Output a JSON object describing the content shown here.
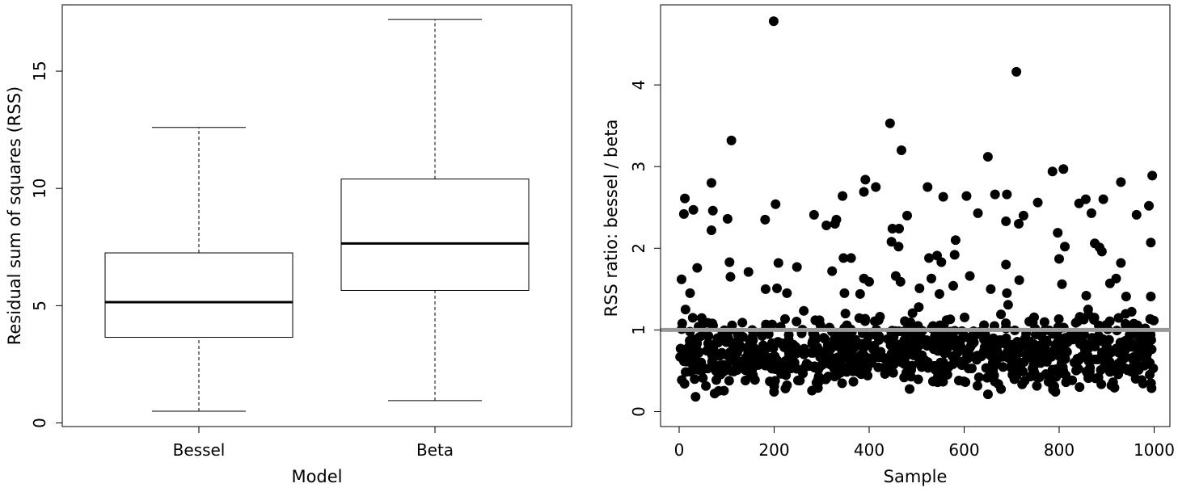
{
  "chart_data": [
    {
      "type": "boxplot",
      "xlabel": "Model",
      "ylabel": "Residual sum of squares (RSS)",
      "ylim": [
        0,
        17.2
      ],
      "yticks": [
        0,
        5,
        10,
        15
      ],
      "ytick_labels": [
        "0",
        "5",
        "10",
        "15"
      ],
      "categories": [
        "Bessel",
        "Beta"
      ],
      "boxes": [
        {
          "name": "Bessel",
          "whisker_low": 0.5,
          "q1": 3.65,
          "median": 5.15,
          "q3": 7.25,
          "whisker_high": 12.6
        },
        {
          "name": "Beta",
          "whisker_low": 0.95,
          "q1": 5.65,
          "median": 7.65,
          "q3": 10.4,
          "whisker_high": 17.2
        }
      ],
      "grid": false
    },
    {
      "type": "scatter",
      "xlabel": "Sample",
      "ylabel": "RSS ratio: bessel / beta",
      "xlim": [
        0,
        1000
      ],
      "ylim": [
        0,
        4.8
      ],
      "xticks": [
        0,
        200,
        400,
        600,
        800,
        1000
      ],
      "xtick_labels": [
        "0",
        "200",
        "400",
        "600",
        "800",
        "1000"
      ],
      "yticks": [
        0,
        1,
        2,
        3,
        4
      ],
      "ytick_labels": [
        "0",
        "1",
        "2",
        "3",
        "4"
      ],
      "reference_line": {
        "y": 1,
        "color": "#999999"
      },
      "point_color": "#000000",
      "grid": false,
      "points": [
        [
          199,
          4.78
        ],
        [
          710,
          4.16
        ],
        [
          444,
          3.53
        ],
        [
          110,
          3.32
        ],
        [
          468,
          3.2
        ],
        [
          650,
          3.12
        ],
        [
          809,
          2.97
        ],
        [
          786,
          2.94
        ],
        [
          996,
          2.89
        ],
        [
          392,
          2.84
        ],
        [
          68,
          2.8
        ],
        [
          930,
          2.81
        ],
        [
          414,
          2.75
        ],
        [
          523,
          2.75
        ],
        [
          389,
          2.69
        ],
        [
          665,
          2.66
        ],
        [
          690,
          2.66
        ],
        [
          344,
          2.64
        ],
        [
          556,
          2.63
        ],
        [
          605,
          2.64
        ],
        [
          12,
          2.61
        ],
        [
          893,
          2.6
        ],
        [
          856,
          2.6
        ],
        [
          203,
          2.54
        ],
        [
          842,
          2.55
        ],
        [
          755,
          2.56
        ],
        [
          989,
          2.52
        ],
        [
          30,
          2.47
        ],
        [
          71,
          2.46
        ],
        [
          10,
          2.42
        ],
        [
          629,
          2.43
        ],
        [
          963,
          2.41
        ],
        [
          284,
          2.41
        ],
        [
          480,
          2.4
        ],
        [
          725,
          2.4
        ],
        [
          102,
          2.36
        ],
        [
          181,
          2.35
        ],
        [
          331,
          2.35
        ],
        [
          328,
          2.3
        ],
        [
          688,
          2.33
        ],
        [
          310,
          2.28
        ],
        [
          868,
          2.43
        ],
        [
          715,
          2.3
        ],
        [
          449,
          2.24
        ],
        [
          463,
          2.24
        ],
        [
          68,
          2.22
        ],
        [
          797,
          2.19
        ],
        [
          582,
          2.1
        ],
        [
          993,
          2.07
        ],
        [
          447,
          2.08
        ],
        [
          875,
          2.06
        ],
        [
          812,
          2.02
        ],
        [
          885,
          2.01
        ],
        [
          462,
          2.02
        ],
        [
          890,
          1.96
        ],
        [
          580,
          1.92
        ],
        [
          346,
          1.88
        ],
        [
          362,
          1.88
        ],
        [
          526,
          1.88
        ],
        [
          543,
          1.91
        ],
        [
          800,
          1.87
        ],
        [
          106,
          1.83
        ],
        [
          209,
          1.82
        ],
        [
          930,
          1.82
        ],
        [
          552,
          1.83
        ],
        [
          688,
          1.8
        ],
        [
          38,
          1.76
        ],
        [
          248,
          1.77
        ],
        [
          146,
          1.71
        ],
        [
          322,
          1.72
        ],
        [
          612,
          1.66
        ],
        [
          108,
          1.65
        ],
        [
          456,
          1.66
        ],
        [
          5,
          1.62
        ],
        [
          389,
          1.63
        ],
        [
          531,
          1.63
        ],
        [
          716,
          1.61
        ],
        [
          920,
          1.63
        ],
        [
          400,
          1.59
        ],
        [
          466,
          1.59
        ],
        [
          806,
          1.56
        ],
        [
          907,
          1.57
        ],
        [
          577,
          1.54
        ],
        [
          182,
          1.5
        ],
        [
          206,
          1.51
        ],
        [
          506,
          1.51
        ],
        [
          656,
          1.5
        ],
        [
          23,
          1.45
        ],
        [
          227,
          1.45
        ],
        [
          348,
          1.45
        ],
        [
          381,
          1.44
        ],
        [
          548,
          1.44
        ],
        [
          690,
          1.45
        ],
        [
          857,
          1.42
        ],
        [
          941,
          1.41
        ],
        [
          993,
          1.41
        ]
      ],
      "dense_cluster": {
        "x_range": [
          0,
          1000
        ],
        "y_range": [
          0.1,
          1.35
        ],
        "count": 880
      }
    }
  ]
}
